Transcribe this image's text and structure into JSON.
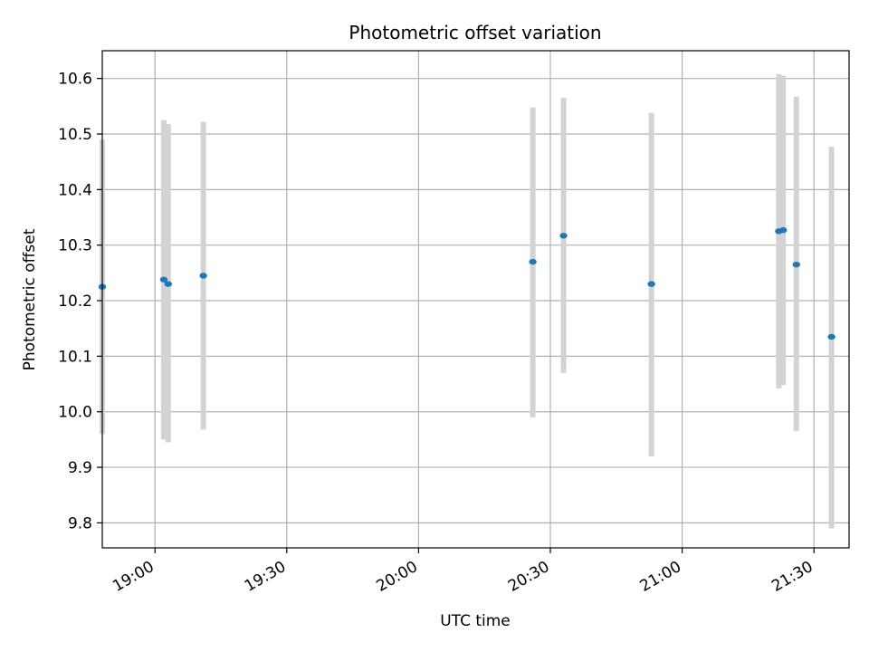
{
  "chart_data": {
    "type": "scatter",
    "title": "Photometric offset variation",
    "xlabel": "UTC time",
    "ylabel": "Photometric offset",
    "x_ticks": [
      "19:00",
      "19:30",
      "20:00",
      "20:30",
      "21:00",
      "21:30"
    ],
    "y_ticks": [
      "9.8",
      "9.9",
      "10.0",
      "10.1",
      "10.2",
      "10.3",
      "10.4",
      "10.5",
      "10.6"
    ],
    "xlim": [
      "18:48",
      "21:38"
    ],
    "ylim": [
      9.755,
      10.65
    ],
    "grid": true,
    "point_color": "#1f77b4",
    "errorbar_color": "#d3d3d3",
    "series": [
      {
        "x": [
          "18:48",
          "19:02",
          "19:03",
          "19:11",
          "20:26",
          "20:33",
          "20:53",
          "21:22",
          "21:23",
          "21:26",
          "21:34"
        ],
        "y": [
          10.225,
          10.238,
          10.23,
          10.245,
          10.27,
          10.317,
          10.23,
          10.325,
          10.327,
          10.265,
          10.135
        ],
        "y_low": [
          9.96,
          9.95,
          9.945,
          9.968,
          9.99,
          10.07,
          9.92,
          10.042,
          10.048,
          9.965,
          9.79
        ],
        "y_high": [
          10.49,
          10.525,
          10.518,
          10.522,
          10.548,
          10.565,
          10.538,
          10.608,
          10.605,
          10.567,
          10.477
        ]
      }
    ]
  }
}
